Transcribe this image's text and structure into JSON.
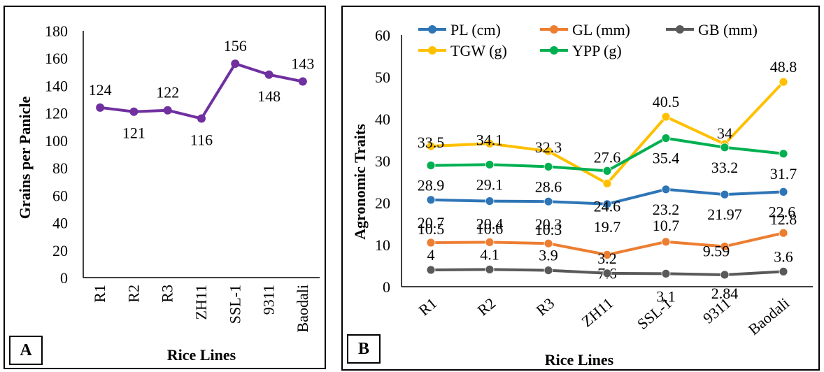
{
  "chart_data": [
    {
      "panel": "A",
      "type": "line",
      "categories": [
        "R1",
        "R2",
        "R3",
        "ZH11",
        "SSL-1",
        "9311",
        "Baodali"
      ],
      "series": [
        {
          "values": [
            124,
            121,
            122,
            116,
            156,
            148,
            143
          ],
          "color": "#7030A0"
        }
      ],
      "xlabel": "Rice Lines",
      "ylabel": "Grains per Panicle",
      "ylim": [
        0,
        180
      ],
      "yticks": [
        0,
        20,
        40,
        60,
        80,
        100,
        120,
        140,
        160,
        180
      ],
      "data_labels": [
        "124",
        "121",
        "122",
        "116",
        "156",
        "148",
        "143"
      ],
      "grid": false
    },
    {
      "panel": "B",
      "type": "line",
      "categories": [
        "R1",
        "R2",
        "R3",
        "ZH11",
        "SSL-1",
        "9311",
        "Baodali"
      ],
      "series": [
        {
          "name": "PL (cm)",
          "color": "#2E75B6",
          "values": [
            20.7,
            20.4,
            20.3,
            19.7,
            23.2,
            21.97,
            22.6
          ],
          "labels": [
            "20.7",
            "20.4",
            "20.3",
            "19.7",
            "23.2",
            "21.97",
            "22.6"
          ]
        },
        {
          "name": "GL (mm)",
          "color": "#ED7D31",
          "values": [
            10.5,
            10.6,
            10.3,
            7.6,
            10.7,
            9.59,
            12.8
          ],
          "labels": [
            "10.5",
            "10.6",
            "10.3",
            "7.6",
            "10.7",
            "9.59",
            "12.8"
          ]
        },
        {
          "name": "GB (mm)",
          "color": "#595959",
          "values": [
            4,
            4.1,
            3.9,
            3.2,
            3.1,
            2.84,
            3.6
          ],
          "labels": [
            "4",
            "4.1",
            "3.9",
            "3.2",
            "3.1",
            "2.84",
            "3.6"
          ]
        },
        {
          "name": "TGW (g)",
          "color": "#FFC000",
          "values": [
            33.5,
            34.1,
            32.3,
            24.6,
            40.5,
            34,
            48.8
          ],
          "labels": [
            "33.5",
            "34.1",
            "32.3",
            "24.6",
            "40.5",
            "34",
            "48.8"
          ]
        },
        {
          "name": "YPP (g)",
          "color": "#00B050",
          "values": [
            28.9,
            29.1,
            28.6,
            27.6,
            35.4,
            33.2,
            31.7
          ],
          "labels": [
            "28.9",
            "29.1",
            "28.6",
            "27.6",
            "35.4",
            "33.2",
            "31.7"
          ]
        }
      ],
      "xlabel": "Rice Lines",
      "ylabel": "Agronomic Traits",
      "ylim": [
        0,
        60
      ],
      "yticks": [
        0,
        10,
        20,
        30,
        40,
        50,
        60
      ],
      "legend_position": "top",
      "grid": false
    }
  ],
  "panel_tags": {
    "a": "A",
    "b": "B"
  }
}
